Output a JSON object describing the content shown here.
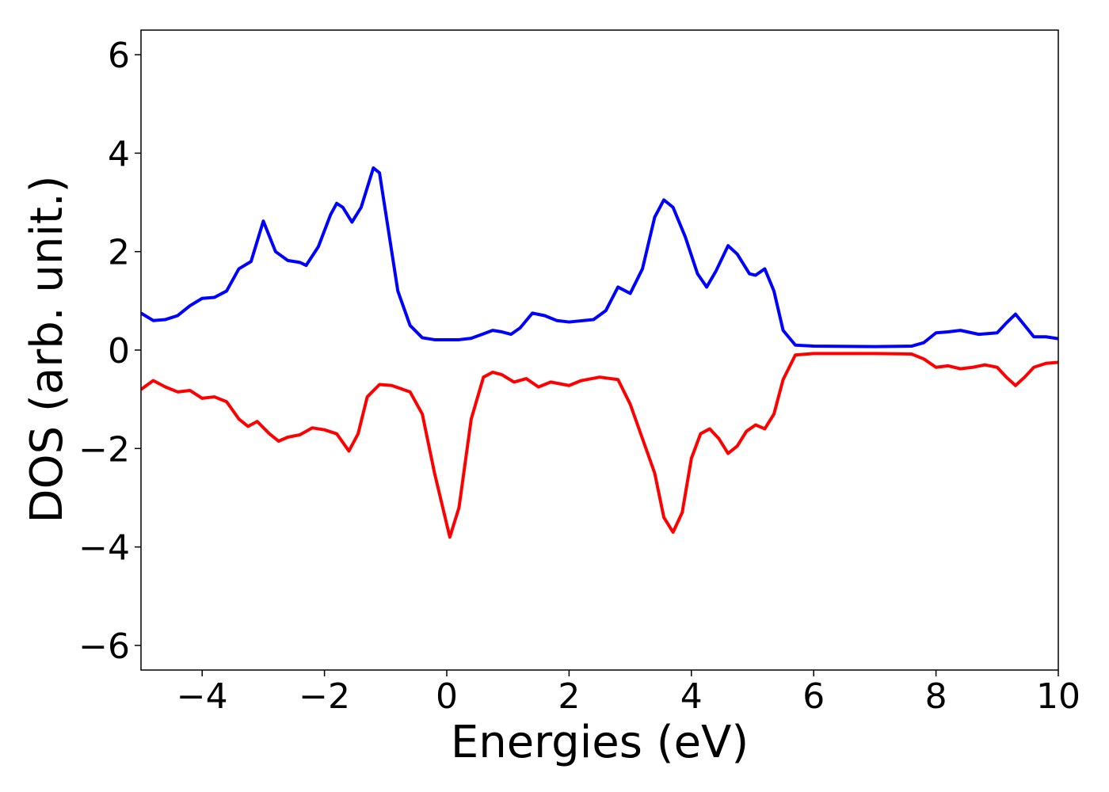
{
  "chart_data": {
    "type": "line",
    "xlabel": "Energies (eV)",
    "ylabel": "DOS (arb. unit.)",
    "xlim": [
      -5,
      10
    ],
    "ylim": [
      -6.5,
      6.5
    ],
    "xticks": [
      {
        "value": -4,
        "label": "−4"
      },
      {
        "value": -2,
        "label": "−2"
      },
      0,
      2,
      4,
      6,
      8,
      10
    ],
    "yticks": [
      {
        "value": -6,
        "label": "−6"
      },
      {
        "value": -4,
        "label": "−4"
      },
      {
        "value": -2,
        "label": "−2"
      },
      0,
      2,
      4,
      6
    ],
    "grid": false,
    "series": [
      {
        "color": "#0000ff",
        "x": [
          -5,
          -4.8,
          -4.6,
          -4.4,
          -4.2,
          -4.0,
          -3.8,
          -3.6,
          -3.4,
          -3.2,
          -3.0,
          -2.8,
          -2.6,
          -2.4,
          -2.3,
          -2.1,
          -1.9,
          -1.8,
          -1.7,
          -1.55,
          -1.4,
          -1.2,
          -1.1,
          -1.0,
          -0.8,
          -0.6,
          -0.4,
          -0.2,
          0.2,
          0.4,
          0.6,
          0.75,
          0.9,
          1.05,
          1.2,
          1.4,
          1.6,
          1.8,
          2.0,
          2.4,
          2.6,
          2.8,
          3.0,
          3.2,
          3.4,
          3.55,
          3.7,
          3.9,
          4.1,
          4.25,
          4.4,
          4.6,
          4.75,
          4.95,
          5.05,
          5.2,
          5.35,
          5.5,
          5.7,
          6.0,
          7.0,
          7.6,
          7.8,
          8.0,
          8.2,
          8.4,
          8.7,
          9.0,
          9.15,
          9.3,
          9.45,
          9.6,
          9.8,
          10
        ],
        "values": [
          0.75,
          0.6,
          0.62,
          0.7,
          0.9,
          1.05,
          1.07,
          1.2,
          1.65,
          1.8,
          2.62,
          2.0,
          1.82,
          1.78,
          1.72,
          2.1,
          2.75,
          2.98,
          2.9,
          2.6,
          2.9,
          3.7,
          3.6,
          2.8,
          1.2,
          0.5,
          0.25,
          0.21,
          0.21,
          0.24,
          0.33,
          0.4,
          0.37,
          0.32,
          0.45,
          0.75,
          0.7,
          0.6,
          0.57,
          0.62,
          0.8,
          1.28,
          1.15,
          1.65,
          2.7,
          3.05,
          2.9,
          2.3,
          1.55,
          1.28,
          1.6,
          2.12,
          1.95,
          1.55,
          1.52,
          1.65,
          1.2,
          0.4,
          0.1,
          0.08,
          0.07,
          0.08,
          0.15,
          0.35,
          0.37,
          0.4,
          0.32,
          0.35,
          0.55,
          0.73,
          0.5,
          0.27,
          0.27,
          0.23
        ]
      },
      {
        "color": "#ff0000",
        "x": [
          -5,
          -4.8,
          -4.6,
          -4.4,
          -4.2,
          -4.0,
          -3.8,
          -3.6,
          -3.4,
          -3.25,
          -3.1,
          -2.9,
          -2.75,
          -2.6,
          -2.4,
          -2.2,
          -2.0,
          -1.8,
          -1.6,
          -1.45,
          -1.3,
          -1.1,
          -0.9,
          -0.6,
          -0.4,
          -0.2,
          0.05,
          0.2,
          0.4,
          0.6,
          0.75,
          0.9,
          1.1,
          1.3,
          1.5,
          1.7,
          2.0,
          2.2,
          2.5,
          2.8,
          3.0,
          3.2,
          3.4,
          3.55,
          3.7,
          3.85,
          4.0,
          4.15,
          4.3,
          4.45,
          4.6,
          4.75,
          4.9,
          5.05,
          5.2,
          5.35,
          5.5,
          5.7,
          6.0,
          7.0,
          7.6,
          7.8,
          8.0,
          8.2,
          8.4,
          8.6,
          8.8,
          9.0,
          9.15,
          9.3,
          9.45,
          9.6,
          9.8,
          10
        ],
        "values": [
          -0.8,
          -0.62,
          -0.75,
          -0.85,
          -0.82,
          -0.98,
          -0.95,
          -1.05,
          -1.4,
          -1.55,
          -1.45,
          -1.7,
          -1.85,
          -1.77,
          -1.72,
          -1.58,
          -1.62,
          -1.7,
          -2.05,
          -1.7,
          -0.95,
          -0.7,
          -0.72,
          -0.85,
          -1.3,
          -2.5,
          -3.8,
          -3.2,
          -1.4,
          -0.55,
          -0.45,
          -0.5,
          -0.65,
          -0.58,
          -0.75,
          -0.65,
          -0.72,
          -0.62,
          -0.55,
          -0.6,
          -1.1,
          -1.8,
          -2.5,
          -3.4,
          -3.7,
          -3.3,
          -2.2,
          -1.7,
          -1.6,
          -1.8,
          -2.1,
          -1.95,
          -1.65,
          -1.52,
          -1.6,
          -1.3,
          -0.6,
          -0.1,
          -0.07,
          -0.07,
          -0.08,
          -0.18,
          -0.35,
          -0.32,
          -0.38,
          -0.35,
          -0.3,
          -0.35,
          -0.55,
          -0.72,
          -0.55,
          -0.35,
          -0.27,
          -0.25
        ]
      }
    ]
  }
}
